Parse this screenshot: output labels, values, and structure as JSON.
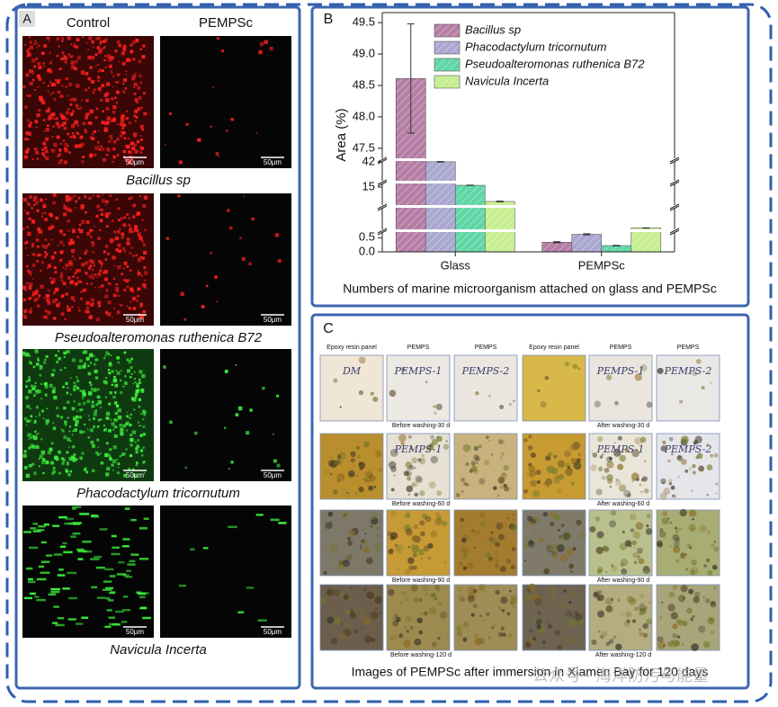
{
  "panel_a": {
    "label": "A",
    "columns": [
      "Control",
      "PEMPSc"
    ],
    "rows": [
      {
        "caption": "Bacillus sp",
        "scale_bars": [
          "50μm",
          "50μm"
        ]
      },
      {
        "caption": "Pseudoalteromonas ruthenica B72",
        "scale_bars": [
          "50μm",
          "50μm"
        ]
      },
      {
        "caption": "Phacodactylum tricornutum",
        "scale_bars": [
          "50μm",
          "50μm"
        ]
      },
      {
        "caption": "Navicula Incerta",
        "scale_bars": [
          "50μm",
          "50μm"
        ]
      }
    ]
  },
  "chart_data": {
    "type": "bar",
    "label": "B",
    "caption": "Numbers of marine microorganism attached on glass and PEMPSc",
    "y_label": "Area (%)",
    "categories": [
      "Glass",
      "PEMPSc"
    ],
    "axis_break": true,
    "hatch": true,
    "segments": [
      {
        "ylim": [
          0,
          0.7
        ],
        "yticks": [
          {
            "value": 0,
            "label": "0.0"
          },
          0.5
        ]
      },
      {
        "ylim": [
          0.7,
          10
        ],
        "yticks": []
      },
      {
        "ylim": [
          10,
          16
        ],
        "yticks": [
          15
        ]
      },
      {
        "ylim": [
          20,
          43
        ],
        "yticks": [
          42
        ]
      },
      {
        "ylim": [
          47.34,
          49.66
        ],
        "yticks": [
          47.5,
          {
            "value": 48,
            "label": "48.0"
          },
          48.5,
          {
            "value": 49,
            "label": "49.0"
          },
          49.5
        ]
      }
    ],
    "series": [
      {
        "name": "Bacillus sp",
        "color": "#b57ea5",
        "values": [
          48.61,
          0.34
        ],
        "errors": [
          0.87,
          0.02
        ]
      },
      {
        "name": "Phacodactylum tricornutum",
        "color": "#aaa7d0",
        "values": [
          42.1,
          0.62
        ],
        "errors": [
          0.3,
          0.02
        ]
      },
      {
        "name": "Pseudoalteromonas ruthenica B72",
        "color": "#5fd6a6",
        "values": [
          15.5,
          0.22
        ],
        "errors": [
          0.05,
          0.01
        ]
      },
      {
        "name": "Navicula Incerta",
        "color": "#c6ee90",
        "values": [
          11,
          1.3
        ],
        "errors": [
          0.1,
          0.06
        ]
      }
    ]
  },
  "panel_c": {
    "label": "C",
    "headers": [
      "Epoxy resin panel",
      "PEMPS",
      "PEMPS",
      "Epoxy resin panel",
      "PEMPS",
      "PEMPS"
    ],
    "rows": [
      {
        "before": "Before washing-30 d",
        "after": "After washing-30 d",
        "panel_labels": [
          "DM",
          "PEMPS-1",
          "PEMPS-2",
          null,
          "PEMPS-1",
          "PEMPS-2"
        ]
      },
      {
        "before": "Before washing-60 d",
        "after": "After washing-60 d",
        "panel_labels": [
          null,
          "PEMPS-1",
          null,
          null,
          "PEMPS-1",
          "PEMPS-2"
        ]
      },
      {
        "before": "Before washing-90 d",
        "after": "After washing-90 d"
      },
      {
        "before": "Before washing-120 d",
        "after": "After washing-120 d"
      }
    ],
    "caption": "Images of PEMPSc after immersion in Xiamen Bay for 120 days"
  },
  "watermark": "公众号 · 海洋防污与能量"
}
